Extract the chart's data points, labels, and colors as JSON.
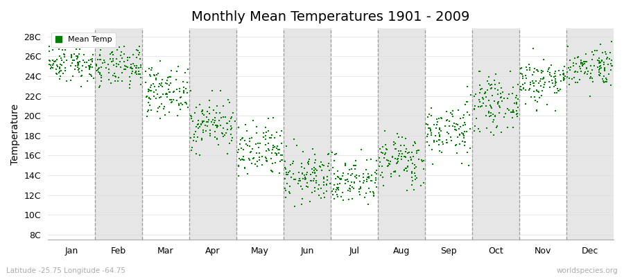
{
  "title": "Monthly Mean Temperatures 1901 - 2009",
  "ylabel": "Temperature",
  "bottom_left": "Latitude -25.75 Longitude -64.75",
  "bottom_right": "worldspecies.org",
  "dot_color": "#008000",
  "background_color": "#ffffff",
  "alt_band_color": "#e6e6e6",
  "legend_label": "Mean Temp",
  "ytick_labels": [
    "8C",
    "10C",
    "12C",
    "14C",
    "16C",
    "18C",
    "20C",
    "22C",
    "24C",
    "26C",
    "28C"
  ],
  "ytick_values": [
    8,
    10,
    12,
    14,
    16,
    18,
    20,
    22,
    24,
    26,
    28
  ],
  "ylim": [
    7.5,
    28.8
  ],
  "months": [
    "Jan",
    "Feb",
    "Mar",
    "Apr",
    "May",
    "Jun",
    "Jul",
    "Aug",
    "Sep",
    "Oct",
    "Nov",
    "Dec"
  ],
  "month_means": [
    25.3,
    24.8,
    22.5,
    19.2,
    16.3,
    13.8,
    13.5,
    15.5,
    18.5,
    21.2,
    23.5,
    25.0
  ],
  "month_stds": [
    0.9,
    1.0,
    1.2,
    1.3,
    1.4,
    1.3,
    1.2,
    1.3,
    1.4,
    1.3,
    1.2,
    1.0
  ],
  "month_mins": [
    22.0,
    21.0,
    18.5,
    16.0,
    12.5,
    8.5,
    9.0,
    11.5,
    15.0,
    17.0,
    20.5,
    22.0
  ],
  "month_maxs": [
    27.8,
    27.0,
    25.5,
    22.5,
    20.8,
    17.8,
    17.0,
    19.0,
    23.0,
    24.5,
    27.0,
    27.5
  ],
  "n_years": 109,
  "seed": 42,
  "title_fontsize": 14,
  "axis_fontsize": 9,
  "ylabel_fontsize": 10
}
